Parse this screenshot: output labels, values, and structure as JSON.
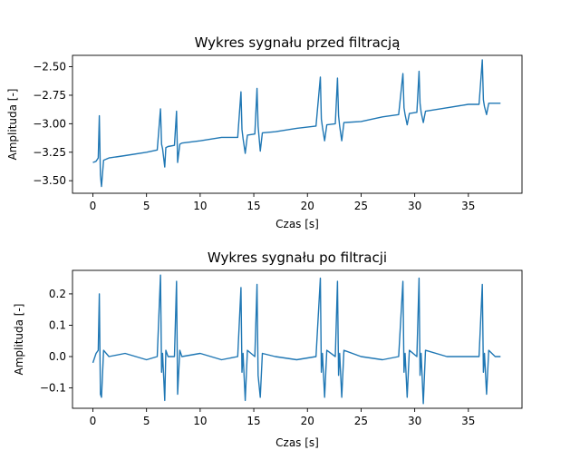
{
  "chart_data": [
    {
      "type": "line",
      "title": "Wykres sygnału przed filtracją",
      "xlabel": "Czas [s]",
      "ylabel": "Amplituda [-]",
      "xlim": [
        -1.9,
        40.0
      ],
      "ylim": [
        -3.61,
        -2.4
      ],
      "xticks": [
        0,
        5,
        10,
        15,
        20,
        25,
        30,
        35
      ],
      "xtick_labels": [
        "0",
        "5",
        "10",
        "15",
        "20",
        "25",
        "30",
        "35"
      ],
      "yticks": [
        -3.5,
        -3.25,
        -3.0,
        -2.75,
        -2.5
      ],
      "ytick_labels": [
        "−3.50",
        "−3.25",
        "−3.00",
        "−2.75",
        "−2.50"
      ],
      "grid": false,
      "series": [
        {
          "color": "#1f77b4",
          "x": [
            0.0,
            0.3,
            0.5,
            0.6,
            0.7,
            0.8,
            1.0,
            1.5,
            3.0,
            5.0,
            6.0,
            6.3,
            6.4,
            6.5,
            6.7,
            6.8,
            7.0,
            7.6,
            7.8,
            7.9,
            8.1,
            8.3,
            10.0,
            12.0,
            13.5,
            13.8,
            13.9,
            14.0,
            14.2,
            14.4,
            15.1,
            15.3,
            15.4,
            15.6,
            15.8,
            17.0,
            19.0,
            20.8,
            21.2,
            21.3,
            21.4,
            21.6,
            21.8,
            22.6,
            22.8,
            22.9,
            23.0,
            23.2,
            23.4,
            25.0,
            27.0,
            28.5,
            28.9,
            29.0,
            29.1,
            29.3,
            29.5,
            30.2,
            30.4,
            30.5,
            30.6,
            30.8,
            31.0,
            33.0,
            35.0,
            36.0,
            36.3,
            36.4,
            36.5,
            36.7,
            36.9,
            37.5,
            38.0
          ],
          "values": [
            -3.34,
            -3.33,
            -3.3,
            -2.93,
            -3.45,
            -3.55,
            -3.32,
            -3.3,
            -3.28,
            -3.25,
            -3.23,
            -2.87,
            -3.18,
            -3.22,
            -3.38,
            -3.21,
            -3.2,
            -3.19,
            -2.89,
            -3.34,
            -3.18,
            -3.17,
            -3.15,
            -3.12,
            -3.12,
            -2.72,
            -3.05,
            -3.13,
            -3.26,
            -3.1,
            -3.09,
            -2.69,
            -3.02,
            -3.24,
            -3.08,
            -3.07,
            -3.04,
            -3.02,
            -2.59,
            -2.96,
            -3.03,
            -3.15,
            -3.01,
            -3.0,
            -2.6,
            -2.93,
            -3.02,
            -3.15,
            -2.99,
            -2.98,
            -2.94,
            -2.92,
            -2.56,
            -2.86,
            -2.92,
            -3.01,
            -2.91,
            -2.9,
            -2.54,
            -2.82,
            -2.9,
            -2.99,
            -2.89,
            -2.86,
            -2.83,
            -2.83,
            -2.44,
            -2.79,
            -2.85,
            -2.92,
            -2.82,
            -2.82,
            -2.82
          ]
        }
      ]
    },
    {
      "type": "line",
      "title": "Wykres sygnału po filtracji",
      "xlabel": "Czas [s]",
      "ylabel": "Amplituda [-]",
      "xlim": [
        -1.9,
        40.0
      ],
      "ylim": [
        -0.165,
        0.275
      ],
      "xticks": [
        0,
        5,
        10,
        15,
        20,
        25,
        30,
        35
      ],
      "xtick_labels": [
        "0",
        "5",
        "10",
        "15",
        "20",
        "25",
        "30",
        "35"
      ],
      "yticks": [
        -0.1,
        0.0,
        0.1,
        0.2
      ],
      "ytick_labels": [
        "−0.1",
        "0.0",
        "0.1",
        "0.2"
      ],
      "grid": false,
      "series": [
        {
          "color": "#1f77b4",
          "x": [
            0.0,
            0.3,
            0.5,
            0.6,
            0.7,
            0.8,
            1.0,
            1.5,
            3.0,
            5.0,
            6.0,
            6.3,
            6.4,
            6.5,
            6.7,
            6.8,
            7.0,
            7.6,
            7.8,
            7.9,
            8.1,
            8.3,
            10.0,
            12.0,
            13.5,
            13.8,
            13.9,
            14.0,
            14.2,
            14.4,
            15.1,
            15.3,
            15.4,
            15.6,
            15.8,
            17.0,
            19.0,
            20.8,
            21.2,
            21.3,
            21.4,
            21.6,
            21.8,
            22.6,
            22.8,
            22.9,
            23.0,
            23.2,
            23.4,
            25.0,
            27.0,
            28.5,
            28.9,
            29.0,
            29.1,
            29.3,
            29.5,
            30.2,
            30.4,
            30.5,
            30.6,
            30.8,
            31.0,
            33.0,
            35.0,
            36.0,
            36.3,
            36.4,
            36.5,
            36.7,
            36.9,
            37.5,
            38.0
          ],
          "values": [
            -0.02,
            0.01,
            0.02,
            0.2,
            -0.12,
            -0.13,
            0.02,
            0.0,
            0.01,
            -0.01,
            0.0,
            0.26,
            -0.05,
            0.01,
            -0.14,
            0.02,
            0.0,
            0.0,
            0.24,
            -0.12,
            0.02,
            0.0,
            0.01,
            -0.01,
            0.0,
            0.22,
            -0.05,
            0.01,
            -0.14,
            0.02,
            0.0,
            0.23,
            -0.06,
            -0.13,
            0.01,
            0.0,
            -0.01,
            0.0,
            0.25,
            -0.05,
            0.01,
            -0.13,
            0.02,
            0.0,
            0.24,
            -0.06,
            0.01,
            -0.13,
            0.02,
            0.0,
            -0.01,
            0.0,
            0.24,
            -0.05,
            0.01,
            -0.13,
            0.02,
            0.0,
            0.25,
            -0.06,
            0.01,
            -0.15,
            0.02,
            0.0,
            0.0,
            0.0,
            0.23,
            -0.05,
            0.01,
            -0.12,
            0.02,
            0.0,
            0.0
          ]
        }
      ]
    }
  ]
}
